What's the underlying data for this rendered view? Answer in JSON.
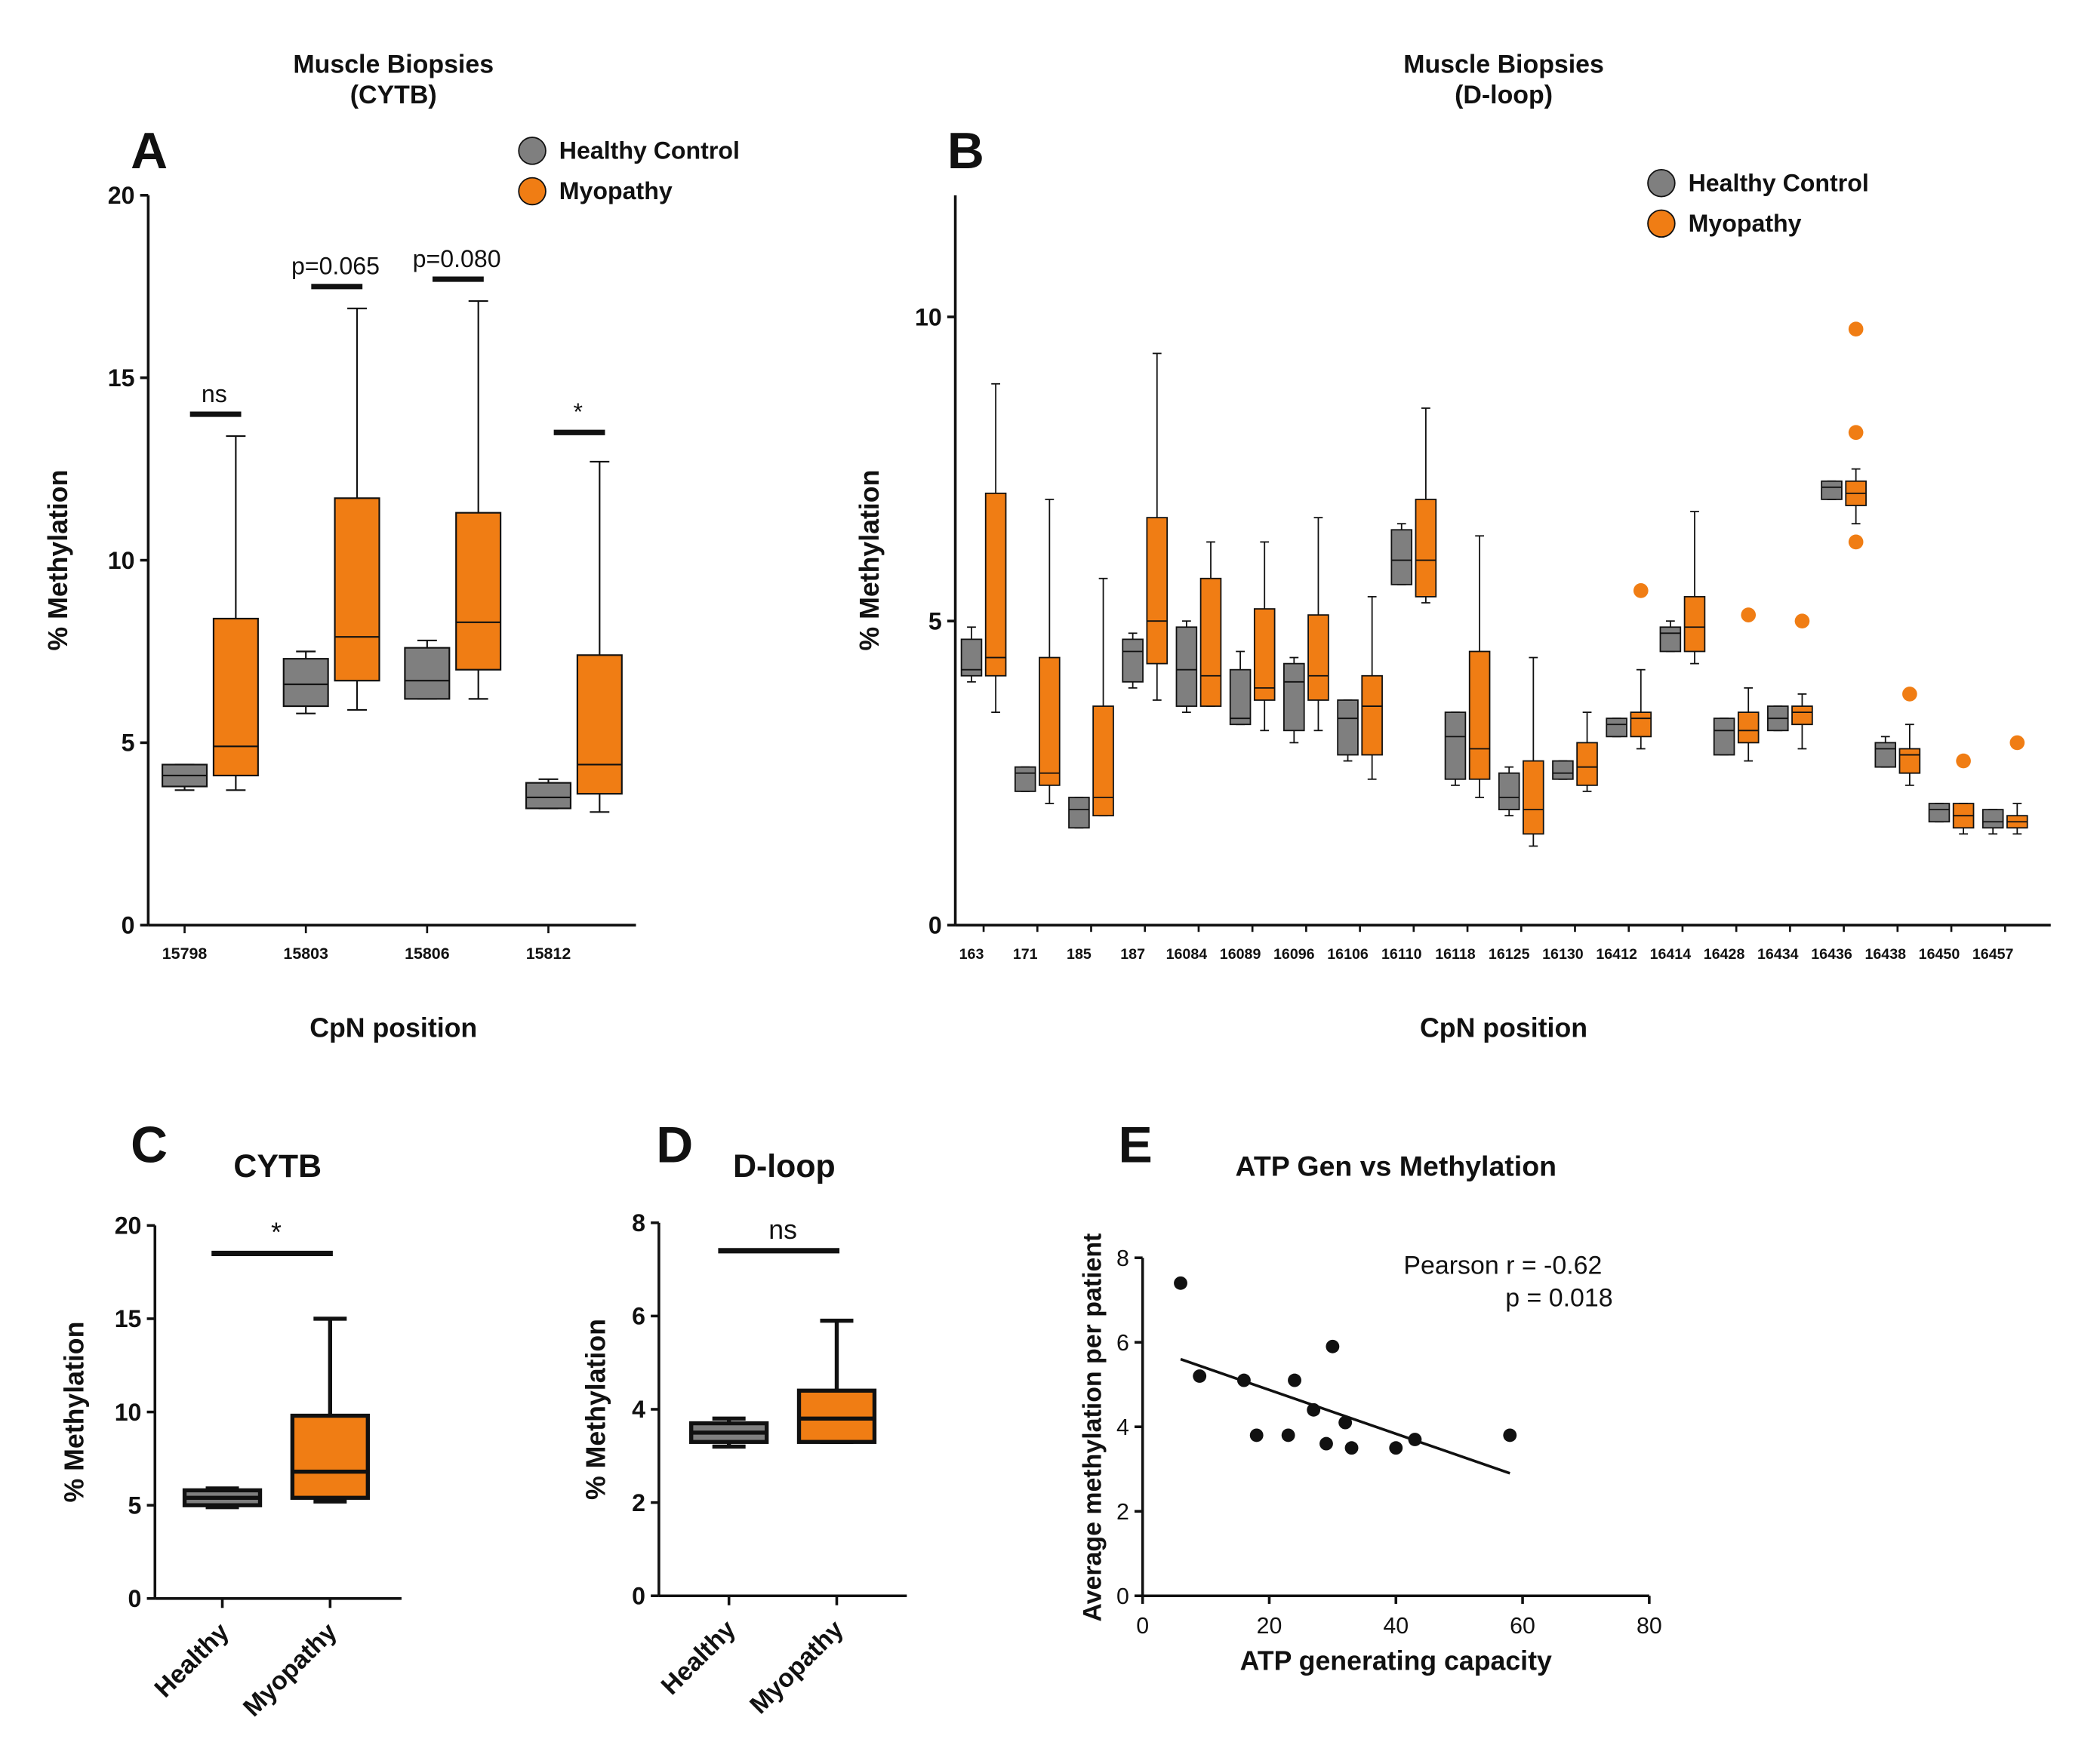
{
  "colors": {
    "healthy": "#7f7f7f",
    "myopathy": "#f07d14",
    "ink": "#111111"
  },
  "chart_data": [
    {
      "panel": "A",
      "type": "box",
      "title": "Muscle Biopsies\n(CYTB)",
      "xlabel": "CpN position",
      "ylabel": "% Methylation",
      "ylim": [
        0,
        20
      ],
      "yticks": [
        "0",
        "5",
        "10",
        "15",
        "20"
      ],
      "legend": [
        "Healthy Control",
        "Myopathy"
      ],
      "categories": [
        "15798",
        "15803",
        "15806",
        "15812"
      ],
      "series": [
        {
          "name": "Healthy Control",
          "boxes": [
            {
              "min": 3.7,
              "q1": 3.8,
              "median": 4.1,
              "q3": 4.4,
              "max": 4.4
            },
            {
              "min": 5.8,
              "q1": 6.0,
              "median": 6.6,
              "q3": 7.3,
              "max": 7.5
            },
            {
              "min": 6.2,
              "q1": 6.2,
              "median": 6.7,
              "q3": 7.6,
              "max": 7.8
            },
            {
              "min": 3.2,
              "q1": 3.2,
              "median": 3.5,
              "q3": 3.9,
              "max": 4.0
            }
          ]
        },
        {
          "name": "Myopathy",
          "boxes": [
            {
              "min": 3.7,
              "q1": 4.1,
              "median": 4.9,
              "q3": 8.4,
              "max": 13.4
            },
            {
              "min": 5.9,
              "q1": 6.7,
              "median": 7.9,
              "q3": 11.7,
              "max": 16.9
            },
            {
              "min": 6.2,
              "q1": 7.0,
              "median": 8.3,
              "q3": 11.3,
              "max": 17.1
            },
            {
              "min": 3.1,
              "q1": 3.6,
              "median": 4.4,
              "q3": 7.4,
              "max": 12.7
            }
          ]
        }
      ],
      "annotations": [
        {
          "text": "ns",
          "group": 0,
          "y": 14.0
        },
        {
          "text": "p=0.065",
          "group": 1,
          "y": 17.5
        },
        {
          "text": "p=0.080",
          "group": 2,
          "y": 17.7
        },
        {
          "text": "*",
          "group": 3,
          "y": 13.5
        }
      ]
    },
    {
      "panel": "B",
      "type": "box",
      "title": "Muscle Biopsies\n(D-loop)",
      "xlabel": "CpN position",
      "ylabel": "% Methylation",
      "ylim": [
        0,
        12
      ],
      "yticks": [
        "0",
        "5",
        "10"
      ],
      "legend": [
        "Healthy Control",
        "Myopathy"
      ],
      "categories": [
        "163",
        "171",
        "185",
        "187",
        "16084",
        "16089",
        "16096",
        "16106",
        "16110",
        "16118",
        "16125",
        "16130",
        "16412",
        "16414",
        "16428",
        "16434",
        "16436",
        "16438",
        "16450",
        "16457"
      ],
      "series": [
        {
          "name": "Healthy Control",
          "boxes": [
            {
              "min": 4.0,
              "q1": 4.1,
              "median": 4.2,
              "q3": 4.7,
              "max": 4.9
            },
            {
              "min": 2.2,
              "q1": 2.2,
              "median": 2.5,
              "q3": 2.6,
              "max": 2.6
            },
            {
              "min": 1.6,
              "q1": 1.6,
              "median": 1.9,
              "q3": 2.1,
              "max": 2.1
            },
            {
              "min": 3.9,
              "q1": 4.0,
              "median": 4.5,
              "q3": 4.7,
              "max": 4.8
            },
            {
              "min": 3.5,
              "q1": 3.6,
              "median": 4.2,
              "q3": 4.9,
              "max": 5.0
            },
            {
              "min": 3.3,
              "q1": 3.3,
              "median": 3.4,
              "q3": 4.2,
              "max": 4.5
            },
            {
              "min": 3.0,
              "q1": 3.2,
              "median": 4.0,
              "q3": 4.3,
              "max": 4.4
            },
            {
              "min": 2.7,
              "q1": 2.8,
              "median": 3.4,
              "q3": 3.7,
              "max": 3.7
            },
            {
              "min": 5.6,
              "q1": 5.6,
              "median": 6.0,
              "q3": 6.5,
              "max": 6.6
            },
            {
              "min": 2.3,
              "q1": 2.4,
              "median": 3.1,
              "q3": 3.5,
              "max": 3.5
            },
            {
              "min": 1.8,
              "q1": 1.9,
              "median": 2.1,
              "q3": 2.5,
              "max": 2.6
            },
            {
              "min": 2.4,
              "q1": 2.4,
              "median": 2.5,
              "q3": 2.7,
              "max": 2.7
            },
            {
              "min": 3.1,
              "q1": 3.1,
              "median": 3.3,
              "q3": 3.4,
              "max": 3.4
            },
            {
              "min": 4.5,
              "q1": 4.5,
              "median": 4.8,
              "q3": 4.9,
              "max": 5.0
            },
            {
              "min": 2.8,
              "q1": 2.8,
              "median": 3.2,
              "q3": 3.4,
              "max": 3.4
            },
            {
              "min": 3.2,
              "q1": 3.2,
              "median": 3.4,
              "q3": 3.6,
              "max": 3.6
            },
            {
              "min": 7.0,
              "q1": 7.0,
              "median": 7.2,
              "q3": 7.3,
              "max": 7.3
            },
            {
              "min": 2.6,
              "q1": 2.6,
              "median": 2.9,
              "q3": 3.0,
              "max": 3.1
            },
            {
              "min": 1.7,
              "q1": 1.7,
              "median": 1.9,
              "q3": 2.0,
              "max": 2.0
            },
            {
              "min": 1.5,
              "q1": 1.6,
              "median": 1.7,
              "q3": 1.9,
              "max": 1.9
            }
          ]
        },
        {
          "name": "Myopathy",
          "boxes": [
            {
              "min": 3.5,
              "q1": 4.1,
              "median": 4.4,
              "q3": 7.1,
              "max": 8.9
            },
            {
              "min": 2.0,
              "q1": 2.3,
              "median": 2.5,
              "q3": 4.4,
              "max": 7.0
            },
            {
              "min": 1.8,
              "q1": 1.8,
              "median": 2.1,
              "q3": 3.6,
              "max": 5.7
            },
            {
              "min": 3.7,
              "q1": 4.3,
              "median": 5.0,
              "q3": 6.7,
              "max": 9.4
            },
            {
              "min": 3.6,
              "q1": 3.6,
              "median": 4.1,
              "q3": 5.7,
              "max": 6.3
            },
            {
              "min": 3.2,
              "q1": 3.7,
              "median": 3.9,
              "q3": 5.2,
              "max": 6.3
            },
            {
              "min": 3.2,
              "q1": 3.7,
              "median": 4.1,
              "q3": 5.1,
              "max": 6.7
            },
            {
              "min": 2.4,
              "q1": 2.8,
              "median": 3.6,
              "q3": 4.1,
              "max": 5.4
            },
            {
              "min": 5.3,
              "q1": 5.4,
              "median": 6.0,
              "q3": 7.0,
              "max": 8.5
            },
            {
              "min": 2.1,
              "q1": 2.4,
              "median": 2.9,
              "q3": 4.5,
              "max": 6.4
            },
            {
              "min": 1.3,
              "q1": 1.5,
              "median": 1.9,
              "q3": 2.7,
              "max": 4.4
            },
            {
              "min": 2.2,
              "q1": 2.3,
              "median": 2.6,
              "q3": 3.0,
              "max": 3.5
            },
            {
              "min": 2.9,
              "q1": 3.1,
              "median": 3.4,
              "q3": 3.5,
              "max": 4.2
            },
            {
              "min": 4.3,
              "q1": 4.5,
              "median": 4.9,
              "q3": 5.4,
              "max": 6.8
            },
            {
              "min": 2.7,
              "q1": 3.0,
              "median": 3.2,
              "q3": 3.5,
              "max": 3.9
            },
            {
              "min": 2.9,
              "q1": 3.3,
              "median": 3.5,
              "q3": 3.6,
              "max": 3.8
            },
            {
              "min": 6.6,
              "q1": 6.9,
              "median": 7.1,
              "q3": 7.3,
              "max": 7.5
            },
            {
              "min": 2.3,
              "q1": 2.5,
              "median": 2.8,
              "q3": 2.9,
              "max": 3.3
            },
            {
              "min": 1.5,
              "q1": 1.6,
              "median": 1.8,
              "q3": 2.0,
              "max": 2.0
            },
            {
              "min": 1.5,
              "q1": 1.6,
              "median": 1.7,
              "q3": 1.8,
              "max": 2.0
            }
          ]
        }
      ],
      "outliers": [
        {
          "group": 12,
          "series": "Myopathy",
          "values": [
            5.5
          ]
        },
        {
          "group": 14,
          "series": "Myopathy",
          "values": [
            5.1
          ]
        },
        {
          "group": 15,
          "series": "Myopathy",
          "values": [
            5.0
          ]
        },
        {
          "group": 16,
          "series": "Myopathy",
          "values": [
            9.8,
            8.1,
            6.3
          ]
        },
        {
          "group": 17,
          "series": "Myopathy",
          "values": [
            3.8
          ]
        },
        {
          "group": 18,
          "series": "Myopathy",
          "values": [
            2.7
          ]
        },
        {
          "group": 19,
          "series": "Myopathy",
          "values": [
            3.0
          ]
        }
      ]
    },
    {
      "panel": "C",
      "type": "box",
      "title": "CYTB",
      "xlabel": "",
      "ylabel": "% Methylation",
      "ylim": [
        0,
        20
      ],
      "yticks": [
        "0",
        "5",
        "10",
        "15",
        "20"
      ],
      "categories": [
        "Healthy",
        "Myopathy"
      ],
      "boxes": [
        {
          "min": 4.9,
          "q1": 5.0,
          "median": 5.4,
          "q3": 5.8,
          "max": 5.9
        },
        {
          "min": 5.2,
          "q1": 5.4,
          "median": 6.8,
          "q3": 9.8,
          "max": 15.0
        }
      ],
      "annotation": {
        "text": "*",
        "y": 18.5
      }
    },
    {
      "panel": "D",
      "type": "box",
      "title": "D-loop",
      "xlabel": "",
      "ylabel": "% Methylation",
      "ylim": [
        0,
        8
      ],
      "yticks": [
        "0",
        "2",
        "4",
        "6",
        "8"
      ],
      "categories": [
        "Healthy",
        "Myopathy"
      ],
      "boxes": [
        {
          "min": 3.2,
          "q1": 3.3,
          "median": 3.5,
          "q3": 3.7,
          "max": 3.8
        },
        {
          "min": 3.3,
          "q1": 3.3,
          "median": 3.8,
          "q3": 4.4,
          "max": 5.9
        }
      ],
      "annotation": {
        "text": "ns",
        "y": 7.4
      }
    },
    {
      "panel": "E",
      "type": "scatter",
      "title": "ATP Gen vs Methylation",
      "xlabel": "ATP generating capacity",
      "ylabel": "Average methylation per patient",
      "xlim": [
        0,
        80
      ],
      "ylim": [
        0,
        8
      ],
      "xticks": [
        "0",
        "20",
        "40",
        "60",
        "80"
      ],
      "yticks": [
        "0",
        "2",
        "4",
        "6",
        "8"
      ],
      "points": [
        {
          "x": 6,
          "y": 7.4
        },
        {
          "x": 9,
          "y": 5.2
        },
        {
          "x": 16,
          "y": 5.1
        },
        {
          "x": 18,
          "y": 3.8
        },
        {
          "x": 23,
          "y": 3.8
        },
        {
          "x": 24,
          "y": 5.1
        },
        {
          "x": 27,
          "y": 4.4
        },
        {
          "x": 29,
          "y": 3.6
        },
        {
          "x": 30,
          "y": 5.9
        },
        {
          "x": 32,
          "y": 4.1
        },
        {
          "x": 33,
          "y": 3.5
        },
        {
          "x": 40,
          "y": 3.5
        },
        {
          "x": 43,
          "y": 3.7
        },
        {
          "x": 58,
          "y": 3.8
        }
      ],
      "regression": {
        "x": [
          6,
          58
        ],
        "y": [
          5.6,
          2.9
        ]
      },
      "annotation_lines": [
        "Pearson r = -0.62",
        "p = 0.018"
      ]
    }
  ]
}
